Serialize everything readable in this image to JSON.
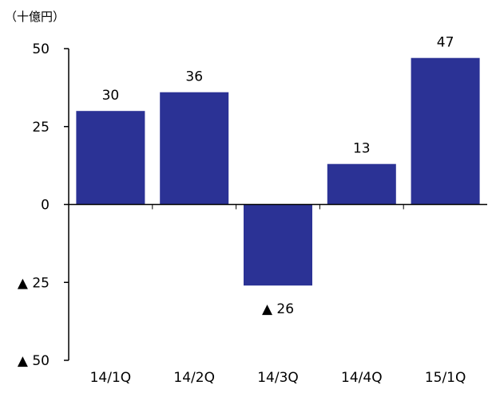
{
  "chart_data": {
    "type": "bar",
    "unit_label": "（十億円）",
    "categories": [
      "14/1Q",
      "14/2Q",
      "14/3Q",
      "14/4Q",
      "15/1Q"
    ],
    "values": [
      30,
      36,
      -26,
      13,
      47
    ],
    "data_labels": [
      "30",
      "36",
      "▲ 26",
      "13",
      "47"
    ],
    "ylim": [
      -50,
      50
    ],
    "y_ticks": [
      {
        "value": 50,
        "label": "50"
      },
      {
        "value": 25,
        "label": "25"
      },
      {
        "value": 0,
        "label": "0"
      },
      {
        "value": -25,
        "label": "▲ 25"
      },
      {
        "value": -50,
        "label": "▲ 50"
      }
    ],
    "bar_color": "#2b3295",
    "grid": false,
    "legend": "none"
  }
}
